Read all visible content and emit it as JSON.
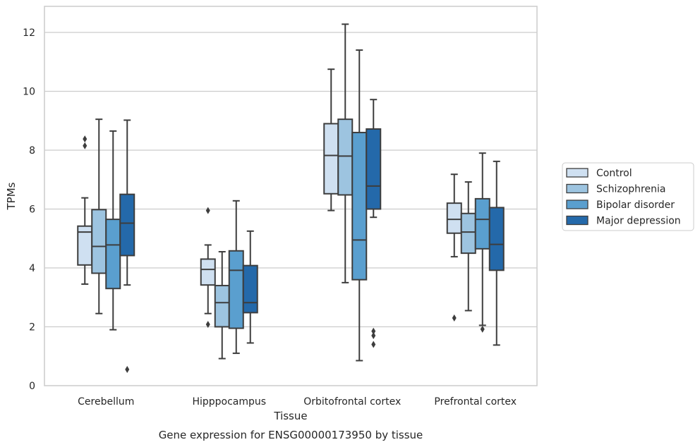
{
  "chart_data": {
    "type": "box",
    "caption": "Gene expression for ENSG00000173950 by tissue",
    "xlabel": "Tissue",
    "ylabel": "TPMs",
    "ylim": [
      0,
      12.9
    ],
    "yticks": [
      0,
      2,
      4,
      6,
      8,
      10,
      12
    ],
    "grid": true,
    "legend_position": "right",
    "categories": [
      "Cerebellum",
      "Hipppocampus",
      "Orbitofrontal cortex",
      "Prefrontal cortex"
    ],
    "series": [
      {
        "name": "Control",
        "color": "#cfe0f1",
        "boxes": [
          {
            "whislo": 3.45,
            "q1": 4.1,
            "med": 5.22,
            "q3": 5.42,
            "whishi": 6.38,
            "fliers": [
              8.15,
              8.38
            ]
          },
          {
            "whislo": 2.45,
            "q1": 3.42,
            "med": 3.95,
            "q3": 4.3,
            "whishi": 4.78,
            "fliers": [
              2.08,
              5.95
            ]
          },
          {
            "whislo": 5.95,
            "q1": 6.52,
            "med": 7.82,
            "q3": 8.9,
            "whishi": 10.75,
            "fliers": []
          },
          {
            "whislo": 4.38,
            "q1": 5.18,
            "med": 5.65,
            "q3": 6.2,
            "whishi": 7.18,
            "fliers": [
              2.3
            ]
          }
        ]
      },
      {
        "name": "Schizophrenia",
        "color": "#9dc4e0",
        "boxes": [
          {
            "whislo": 2.45,
            "q1": 3.82,
            "med": 4.73,
            "q3": 5.98,
            "whishi": 9.05,
            "fliers": []
          },
          {
            "whislo": 0.92,
            "q1": 2.0,
            "med": 2.82,
            "q3": 3.4,
            "whishi": 4.55,
            "fliers": []
          },
          {
            "whislo": 3.5,
            "q1": 6.48,
            "med": 7.8,
            "q3": 9.05,
            "whishi": 12.28,
            "fliers": []
          },
          {
            "whislo": 2.55,
            "q1": 4.5,
            "med": 5.22,
            "q3": 5.85,
            "whishi": 6.92,
            "fliers": []
          }
        ]
      },
      {
        "name": "Bipolar disorder",
        "color": "#5a9fcf",
        "boxes": [
          {
            "whislo": 1.9,
            "q1": 3.3,
            "med": 4.78,
            "q3": 5.65,
            "whishi": 8.65,
            "fliers": []
          },
          {
            "whislo": 1.1,
            "q1": 1.95,
            "med": 3.92,
            "q3": 4.58,
            "whishi": 6.28,
            "fliers": []
          },
          {
            "whislo": 0.85,
            "q1": 3.6,
            "med": 4.95,
            "q3": 8.6,
            "whishi": 11.4,
            "fliers": []
          },
          {
            "whislo": 2.05,
            "q1": 4.65,
            "med": 5.65,
            "q3": 6.35,
            "whishi": 7.9,
            "fliers": [
              1.92
            ]
          }
        ]
      },
      {
        "name": "Major depression",
        "color": "#2469aa",
        "boxes": [
          {
            "whislo": 3.42,
            "q1": 4.42,
            "med": 5.52,
            "q3": 6.5,
            "whishi": 9.02,
            "fliers": [
              0.55
            ]
          },
          {
            "whislo": 1.45,
            "q1": 2.48,
            "med": 2.82,
            "q3": 4.08,
            "whishi": 5.25,
            "fliers": []
          },
          {
            "whislo": 5.72,
            "q1": 6.0,
            "med": 6.78,
            "q3": 8.72,
            "whishi": 9.72,
            "fliers": [
              1.4,
              1.7,
              1.85
            ]
          },
          {
            "whislo": 1.38,
            "q1": 3.92,
            "med": 4.8,
            "q3": 6.05,
            "whishi": 7.62,
            "fliers": []
          }
        ]
      }
    ]
  }
}
